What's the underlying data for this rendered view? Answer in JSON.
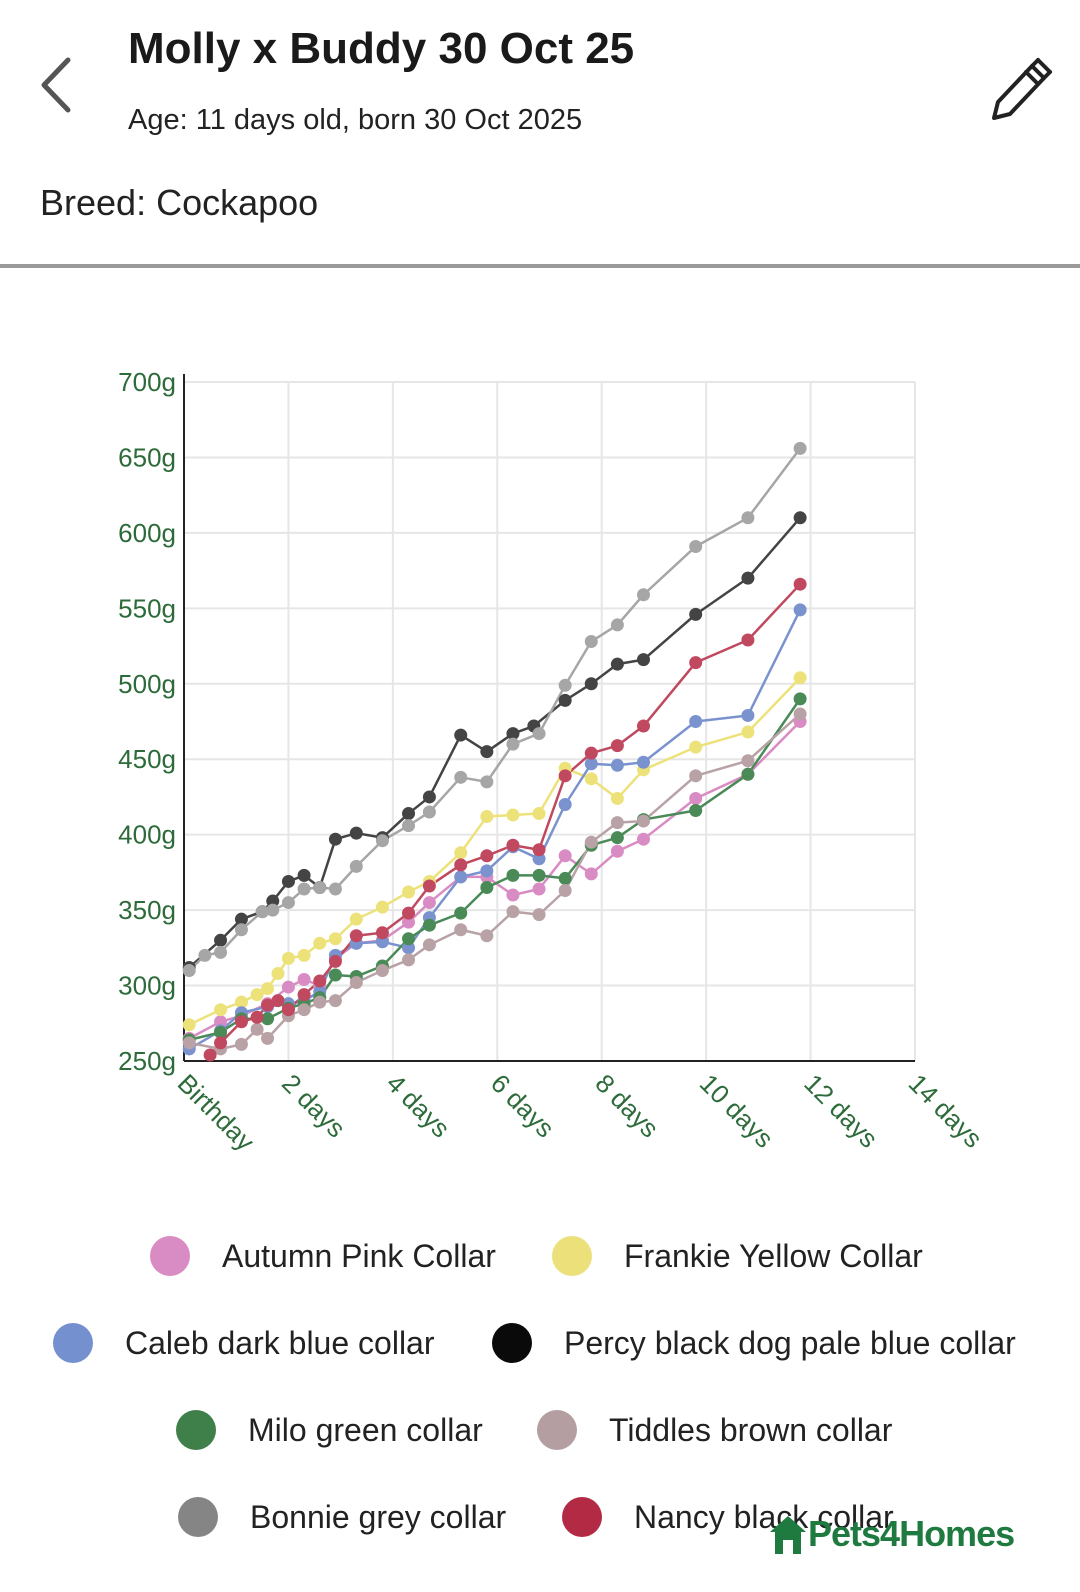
{
  "header": {
    "title": "Molly x Buddy 30 Oct 25",
    "age": "Age: 11 days old, born 30 Oct 2025",
    "breed": "Breed: Cockapoo"
  },
  "icons": {
    "back": "chevron-left-icon",
    "edit": "pencil-icon",
    "logo": "pets4homes-logo-icon"
  },
  "brand": {
    "logo_text": "Pets4Homes",
    "color": "#1f7a3f"
  },
  "chart_data": {
    "type": "line",
    "title": "",
    "xlabel": "",
    "ylabel": "",
    "xlim": [
      0,
      14
    ],
    "ylim": [
      250,
      700
    ],
    "x_ticks": [
      {
        "value": 0,
        "label": "Birthday"
      },
      {
        "value": 2,
        "label": "2 days"
      },
      {
        "value": 4,
        "label": "4 days"
      },
      {
        "value": 6,
        "label": "6 days"
      },
      {
        "value": 8,
        "label": "8 days"
      },
      {
        "value": 10,
        "label": "10 days"
      },
      {
        "value": 12,
        "label": "12 days"
      },
      {
        "value": 14,
        "label": "14 days"
      }
    ],
    "y_ticks": [
      {
        "value": 250,
        "label": "250g"
      },
      {
        "value": 300,
        "label": "300g"
      },
      {
        "value": 350,
        "label": "350g"
      },
      {
        "value": 400,
        "label": "400g"
      },
      {
        "value": 450,
        "label": "450g"
      },
      {
        "value": 500,
        "label": "500g"
      },
      {
        "value": 550,
        "label": "550g"
      },
      {
        "value": 600,
        "label": "600g"
      },
      {
        "value": 650,
        "label": "650g"
      },
      {
        "value": 700,
        "label": "700g"
      }
    ],
    "grid": true,
    "legend_position": "bottom",
    "series": [
      {
        "name": "Autumn Pink Collar",
        "color": "#d98cc4",
        "x": [
          0.1,
          0.7,
          1.1,
          1.6,
          2.0,
          2.3,
          2.6,
          2.9,
          3.3,
          3.8,
          4.3,
          4.7,
          5.3,
          5.8,
          6.3,
          6.8,
          7.3,
          7.8,
          8.3,
          8.8,
          9.8,
          10.8,
          11.8
        ],
        "y": [
          265,
          276,
          280,
          288,
          299,
          304,
          300,
          318,
          328,
          330,
          342,
          355,
          372,
          372,
          360,
          364,
          386,
          374,
          389,
          397,
          424,
          440,
          475
        ]
      },
      {
        "name": "Frankie Yellow Collar",
        "color": "#ede27a",
        "x": [
          0.1,
          0.7,
          1.1,
          1.4,
          1.6,
          1.8,
          2.0,
          2.3,
          2.6,
          2.9,
          3.3,
          3.8,
          4.3,
          4.7,
          5.3,
          5.8,
          6.3,
          6.8,
          7.3,
          7.8,
          8.3,
          8.8,
          9.8,
          10.8,
          11.8
        ],
        "y": [
          274,
          284,
          289,
          294,
          298,
          308,
          318,
          320,
          328,
          331,
          344,
          352,
          362,
          369,
          388,
          412,
          413,
          414,
          444,
          437,
          424,
          443,
          458,
          468,
          504
        ]
      },
      {
        "name": "Caleb dark blue collar",
        "color": "#7a93cf",
        "x": [
          0.1,
          0.7,
          1.1,
          1.6,
          2.0,
          2.3,
          2.6,
          2.9,
          3.3,
          3.8,
          4.3,
          4.7,
          5.3,
          5.8,
          6.3,
          6.8,
          7.3,
          7.8,
          8.3,
          8.8,
          9.8,
          10.8,
          11.8
        ],
        "y": [
          258,
          270,
          282,
          286,
          288,
          290,
          296,
          320,
          328,
          329,
          325,
          345,
          372,
          376,
          392,
          384,
          420,
          447,
          446,
          448,
          475,
          479,
          549
        ]
      },
      {
        "name": "Percy black dog pale blue collar",
        "color": "#444444",
        "x": [
          0.1,
          0.7,
          1.1,
          1.5,
          1.7,
          2.0,
          2.3,
          2.6,
          2.9,
          3.3,
          3.8,
          4.3,
          4.7,
          5.3,
          5.8,
          6.3,
          6.7,
          7.3,
          7.8,
          8.3,
          8.8,
          9.8,
          10.8,
          11.8
        ],
        "y": [
          312,
          330,
          344,
          349,
          356,
          369,
          373,
          365,
          397,
          401,
          398,
          414,
          425,
          466,
          455,
          467,
          472,
          489,
          500,
          513,
          516,
          546,
          570,
          610
        ]
      },
      {
        "name": "Milo green collar",
        "color": "#4a8a57",
        "x": [
          0.1,
          0.7,
          1.1,
          1.6,
          2.0,
          2.3,
          2.6,
          2.9,
          3.3,
          3.8,
          4.3,
          4.7,
          5.3,
          5.8,
          6.3,
          6.8,
          7.3,
          7.8,
          8.3,
          8.8,
          9.8,
          10.8,
          11.8
        ],
        "y": [
          264,
          269,
          278,
          278,
          285,
          288,
          292,
          307,
          306,
          313,
          331,
          340,
          348,
          365,
          373,
          373,
          371,
          393,
          398,
          410,
          416,
          440,
          490
        ]
      },
      {
        "name": "Tiddles brown collar",
        "color": "#b8a2a6",
        "x": [
          0.1,
          0.7,
          1.1,
          1.4,
          1.6,
          2.0,
          2.3,
          2.6,
          2.9,
          3.3,
          3.8,
          4.3,
          4.7,
          5.3,
          5.8,
          6.3,
          6.8,
          7.3,
          7.8,
          8.3,
          8.8,
          9.8,
          10.8,
          11.8
        ],
        "y": [
          262,
          258,
          261,
          271,
          265,
          280,
          284,
          289,
          290,
          302,
          310,
          317,
          327,
          337,
          333,
          349,
          347,
          363,
          395,
          408,
          409,
          439,
          449,
          480
        ]
      },
      {
        "name": "Bonnie grey collar",
        "color": "#a6a6a6",
        "x": [
          0.1,
          0.4,
          0.7,
          1.1,
          1.5,
          1.7,
          2.0,
          2.3,
          2.6,
          2.9,
          3.3,
          3.8,
          4.3,
          4.7,
          5.3,
          5.8,
          6.3,
          6.8,
          7.3,
          7.8,
          8.3,
          8.8,
          9.8,
          10.8,
          11.8
        ],
        "y": [
          310,
          320,
          322,
          337,
          349,
          350,
          355,
          364,
          365,
          364,
          379,
          396,
          406,
          415,
          438,
          435,
          460,
          467,
          499,
          528,
          539,
          559,
          591,
          610,
          656
        ]
      },
      {
        "name": "Nancy black collar",
        "color": "#c0495f",
        "x": [
          0.5,
          0.7,
          1.1,
          1.4,
          1.6,
          1.8,
          2.0,
          2.3,
          2.6,
          2.9,
          3.3,
          3.8,
          4.3,
          4.7,
          5.3,
          5.8,
          6.3,
          6.8,
          7.3,
          7.8,
          8.3,
          8.8,
          9.8,
          10.8,
          11.8
        ],
        "y": [
          254,
          262,
          276,
          279,
          287,
          290,
          284,
          294,
          303,
          316,
          333,
          335,
          348,
          366,
          380,
          386,
          393,
          390,
          439,
          454,
          459,
          472,
          514,
          529,
          566
        ]
      }
    ]
  },
  "legend_layout": [
    [
      "Autumn Pink Collar",
      "Frankie Yellow Collar"
    ],
    [
      "Caleb dark blue collar",
      "Percy black dog pale blue collar"
    ],
    [
      "Milo green collar",
      "Tiddles brown collar"
    ],
    [
      "Bonnie grey collar",
      "Nancy black collar"
    ]
  ],
  "legend_colors": {
    "Autumn Pink Collar": "#d98cc4",
    "Frankie Yellow Collar": "#ece07a",
    "Caleb dark blue collar": "#7490cf",
    "Percy black dog pale blue collar": "#0a0a0a",
    "Milo green collar": "#3f7f4a",
    "Tiddles brown collar": "#b49ea2",
    "Bonnie grey collar": "#858585",
    "Nancy black collar": "#b32a45"
  }
}
